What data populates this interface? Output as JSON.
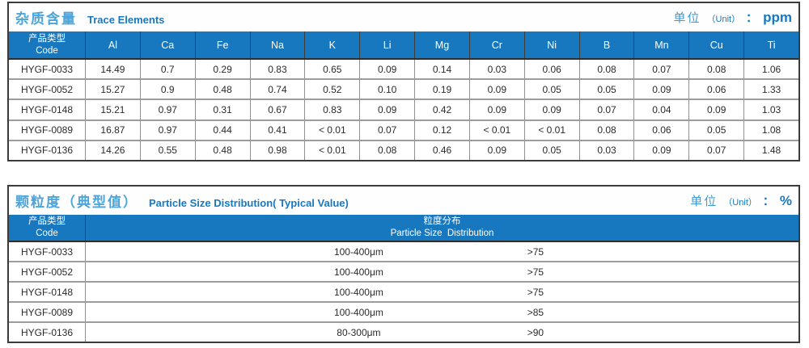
{
  "colors": {
    "header_bg": "#1778bf",
    "title_zh": "#4ba4da",
    "accent": "#1779c2",
    "frame": "#3b3b3b",
    "grid": "#9d9d9d"
  },
  "table1": {
    "title_zh": "杂质含量",
    "title_en": "Trace Elements",
    "unit_zh": "单位",
    "unit_en": "（Unit）",
    "unit_colon": "：",
    "unit_value": "ppm",
    "code_header": {
      "zh": "产品类型",
      "en": "Code"
    },
    "columns": [
      "Al",
      "Ca",
      "Fe",
      "Na",
      "K",
      "Li",
      "Mg",
      "Cr",
      "Ni",
      "B",
      "Mn",
      "Cu",
      "Ti"
    ],
    "rows": [
      {
        "code": "HYGF-0033",
        "values": [
          "14.49",
          "0.7",
          "0.29",
          "0.83",
          "0.65",
          "0.09",
          "0.14",
          "0.03",
          "0.06",
          "0.08",
          "0.07",
          "0.08",
          "1.06"
        ]
      },
      {
        "code": "HYGF-0052",
        "values": [
          "15.27",
          "0.9",
          "0.48",
          "0.74",
          "0.52",
          "0.10",
          "0.19",
          "0.09",
          "0.05",
          "0.05",
          "0.09",
          "0.06",
          "1.33"
        ]
      },
      {
        "code": "HYGF-0148",
        "values": [
          "15.21",
          "0.97",
          "0.31",
          "0.67",
          "0.83",
          "0.09",
          "0.42",
          "0.09",
          "0.09",
          "0.07",
          "0.04",
          "0.09",
          "1.03"
        ]
      },
      {
        "code": "HYGF-0089",
        "values": [
          "16.87",
          "0.97",
          "0.44",
          "0.41",
          "< 0.01",
          "0.07",
          "0.12",
          "< 0.01",
          "< 0.01",
          "0.08",
          "0.06",
          "0.05",
          "1.08"
        ]
      },
      {
        "code": "HYGF-0136",
        "values": [
          "14.26",
          "0.55",
          "0.48",
          "0.98",
          "< 0.01",
          "0.08",
          "0.46",
          "0.09",
          "0.05",
          "0.03",
          "0.09",
          "0.07",
          "1.48"
        ]
      }
    ]
  },
  "table2": {
    "title_zh": "颗粒度（典型值）",
    "title_en": "Particle Size Distribution( Typical Value)",
    "unit_zh": "单位",
    "unit_en": "（Unit）",
    "unit_colon": "：",
    "unit_value": "%",
    "code_header": {
      "zh": "产品类型",
      "en": "Code"
    },
    "dist_header": {
      "zh": "粒度分布",
      "en": "Particle Size  Distribution"
    },
    "rows": [
      {
        "code": "HYGF-0033",
        "range": "100-400μm",
        "percent": ">75"
      },
      {
        "code": "HYGF-0052",
        "range": "100-400μm",
        "percent": ">75"
      },
      {
        "code": "HYGF-0148",
        "range": "100-400μm",
        "percent": ">75"
      },
      {
        "code": "HYGF-0089",
        "range": "100-400μm",
        "percent": ">85"
      },
      {
        "code": "HYGF-0136",
        "range": "80-300μm",
        "percent": ">90"
      }
    ]
  }
}
